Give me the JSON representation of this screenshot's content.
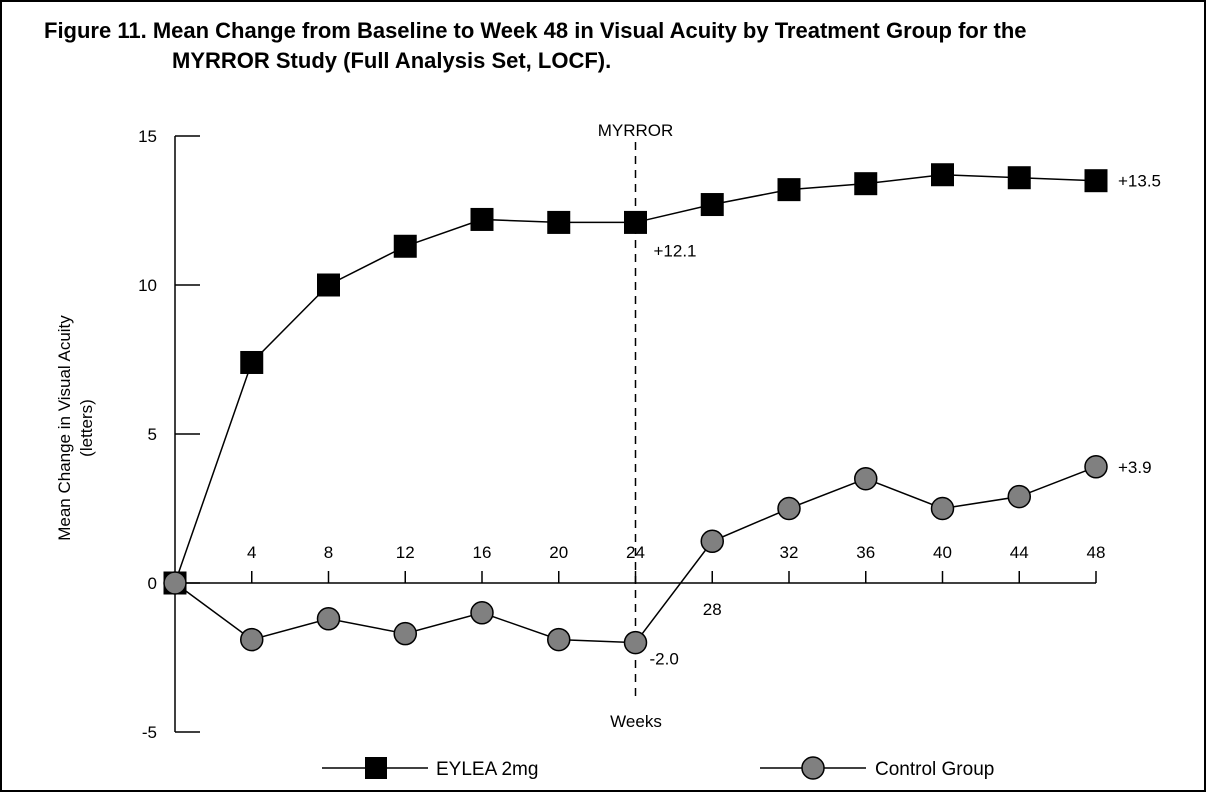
{
  "chart_data": {
    "type": "line",
    "title_line1": "Figure 11. Mean Change from Baseline to Week 48 in Visual Acuity by Treatment Group for the",
    "title_line2": "MYRROR Study (Full Analysis Set, LOCF).",
    "ylabel_line1": "Mean Change in Visual Acuity",
    "ylabel_line2": "(letters)",
    "xlabel": "Weeks",
    "ylim": [
      -5,
      15
    ],
    "yticks": [
      -5,
      0,
      5,
      10,
      15
    ],
    "xlim": [
      0,
      48
    ],
    "xticks": [
      4,
      8,
      12,
      16,
      20,
      24,
      28,
      32,
      36,
      40,
      44,
      48
    ],
    "x": [
      0,
      4,
      8,
      12,
      16,
      20,
      24,
      28,
      32,
      36,
      40,
      44,
      48
    ],
    "series": [
      {
        "name": "EYLEA 2mg",
        "marker": "square",
        "values": [
          0,
          7.4,
          10.0,
          11.3,
          12.2,
          12.1,
          12.1,
          12.7,
          13.2,
          13.4,
          13.7,
          13.6,
          13.5
        ]
      },
      {
        "name": "Control Group",
        "marker": "circle",
        "values": [
          0,
          -1.9,
          -1.2,
          -1.7,
          -1.0,
          -1.9,
          -2.0,
          1.4,
          2.5,
          3.5,
          2.5,
          2.9,
          3.9
        ]
      }
    ],
    "reference_line": {
      "x": 24,
      "label": "MYRROR",
      "style": "dashed"
    },
    "annotations": [
      {
        "text": "+13.5",
        "x": 48,
        "y": 13.5
      },
      {
        "text": "+12.1",
        "x": 24,
        "y": 12.1
      },
      {
        "text": "+3.9",
        "x": 48,
        "y": 3.9
      },
      {
        "text": "-2.0",
        "x": 24,
        "y": -2.0
      }
    ],
    "legend_position": "bottom",
    "grid": false,
    "colors": {
      "eylea": "#000000",
      "control": "#808080"
    }
  }
}
